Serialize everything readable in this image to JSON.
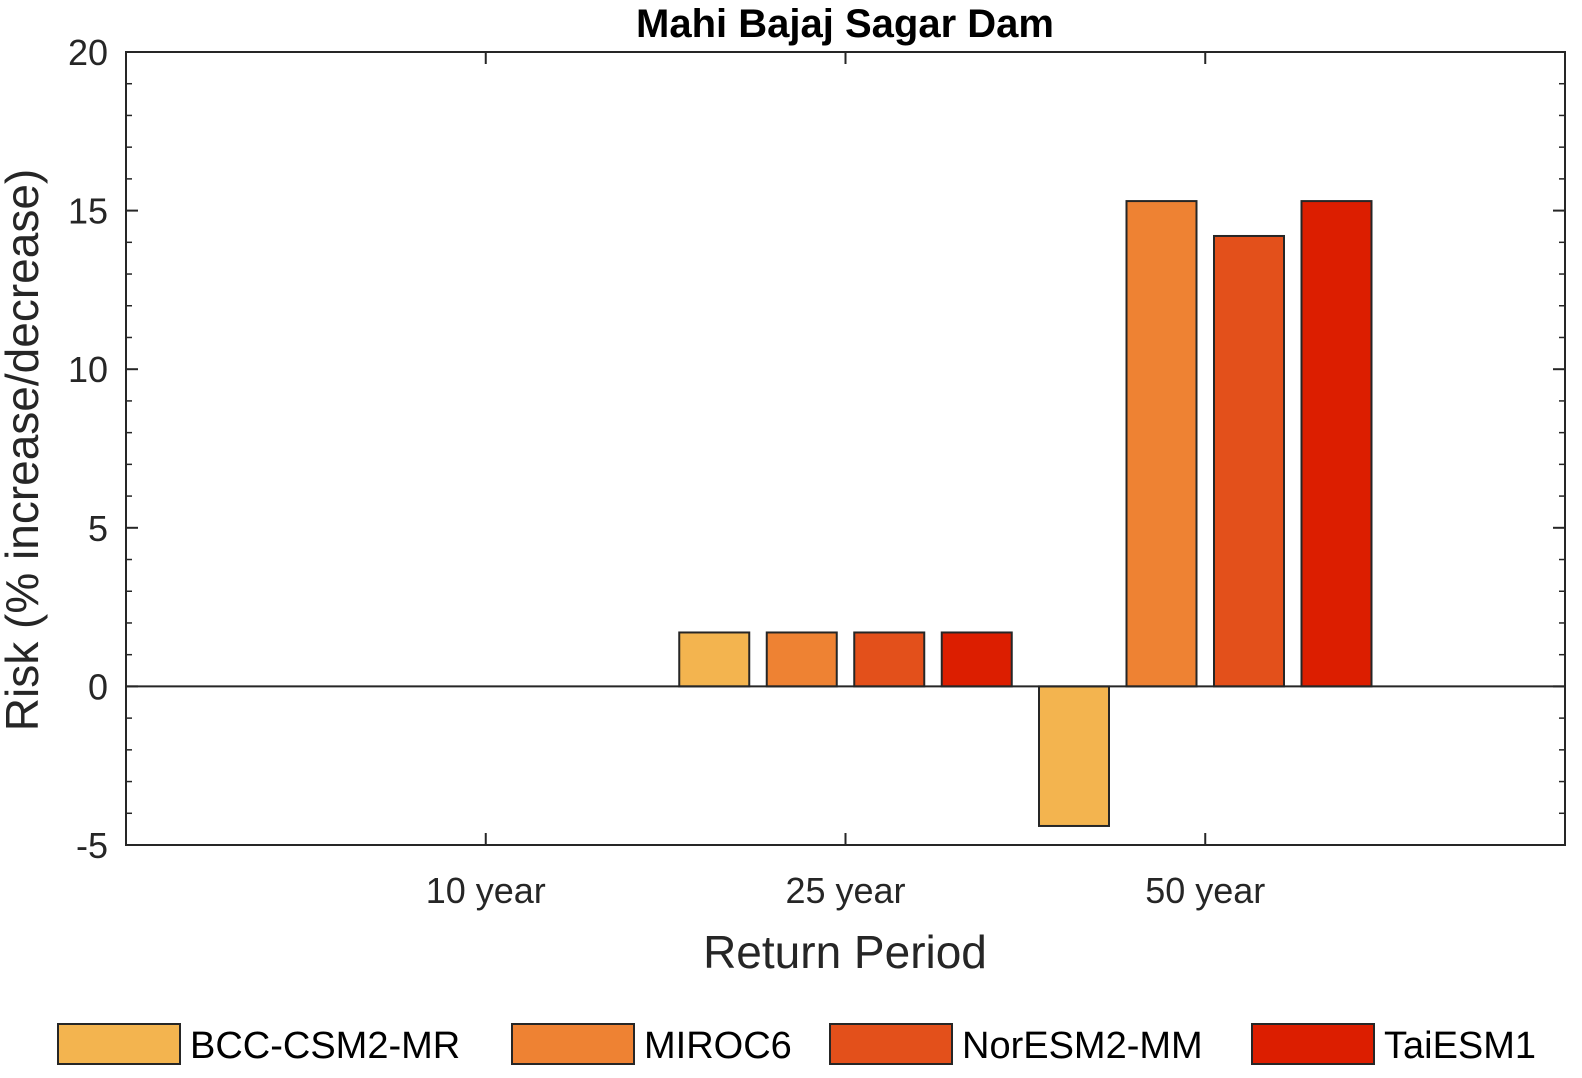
{
  "chart_data": {
    "type": "bar",
    "title": "Mahi Bajaj Sagar Dam",
    "xlabel": "Return Period",
    "ylabel": "Risk (% increase/decrease)",
    "categories": [
      "10 year",
      "25 year",
      "50 year"
    ],
    "ylim": [
      -5,
      20
    ],
    "yticks": [
      -5,
      0,
      5,
      10,
      15,
      20
    ],
    "grid": false,
    "legend_position": "bottom",
    "series": [
      {
        "name": "BCC-CSM2-MR",
        "color": "#f3b44f",
        "values": [
          0,
          1.7,
          -4.4
        ]
      },
      {
        "name": "MIROC6",
        "color": "#ee8233",
        "values": [
          0,
          1.7,
          15.3
        ]
      },
      {
        "name": "NorESM2-MM",
        "color": "#e3501b",
        "values": [
          0,
          1.7,
          14.2
        ]
      },
      {
        "name": "TaiESM1",
        "color": "#dc1e00",
        "values": [
          0,
          1.7,
          15.3
        ]
      }
    ]
  }
}
